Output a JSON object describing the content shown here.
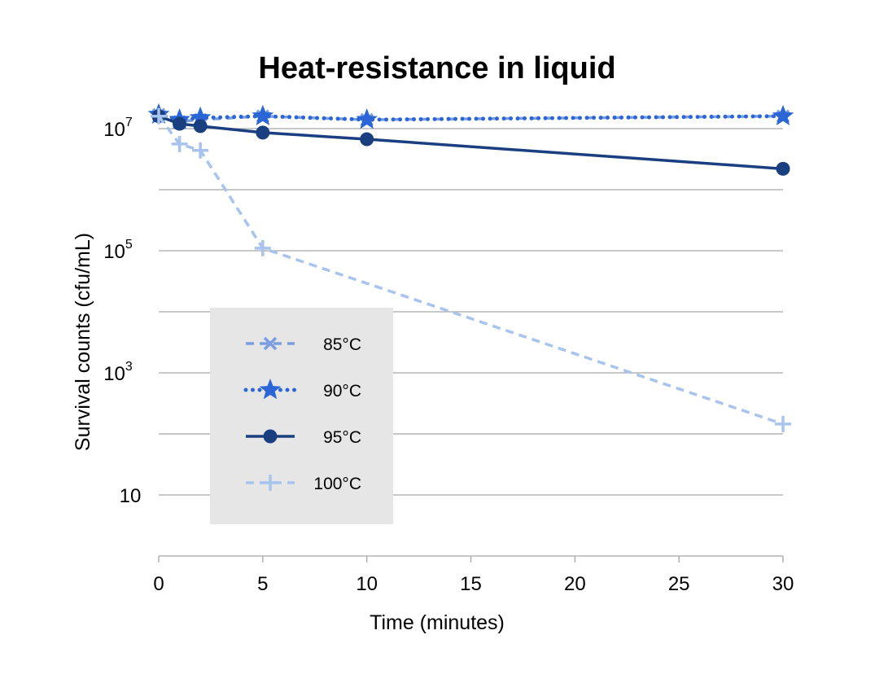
{
  "chart_data": {
    "type": "line",
    "title": "Heat-resistance in liquid",
    "xlabel": "Time (minutes)",
    "ylabel": "Survival counts (cfu/mL)",
    "x": [
      0,
      1,
      2,
      5,
      10,
      30
    ],
    "xlim": [
      0,
      30
    ],
    "x_ticks": [
      "0",
      "5",
      "10",
      "15",
      "20",
      "25",
      "30"
    ],
    "y_scale": "log",
    "ylim": [
      1,
      100000000
    ],
    "y_ticks": [
      {
        "base": "10",
        "exp": "7"
      },
      {
        "base": "10",
        "exp": "5"
      },
      {
        "base": "10",
        "exp": "3"
      },
      {
        "base": "10",
        "exp": ""
      }
    ],
    "grid": "horizontal",
    "legend_position": "lower-left",
    "series": [
      {
        "name": "85°C",
        "color": "#7b9de0",
        "style": "dashed",
        "marker": "x",
        "values": [
          17000000,
          13000000,
          14000000,
          16000000,
          14000000,
          16000000
        ]
      },
      {
        "name": "90°C",
        "color": "#2a66d6",
        "style": "dotted",
        "marker": "star",
        "values": [
          17000000,
          14000000,
          15000000,
          16000000,
          14000000,
          16000000
        ]
      },
      {
        "name": "95°C",
        "color": "#1a3f80",
        "style": "solid",
        "marker": "circle",
        "values": [
          16000000,
          12000000,
          11000000,
          8600000,
          6700000,
          2200000
        ]
      },
      {
        "name": "100°C",
        "color": "#a8c4ee",
        "style": "dashed",
        "marker": "plus",
        "values": [
          16000000,
          5600000,
          4400000,
          110000,
          null,
          145
        ]
      }
    ]
  }
}
